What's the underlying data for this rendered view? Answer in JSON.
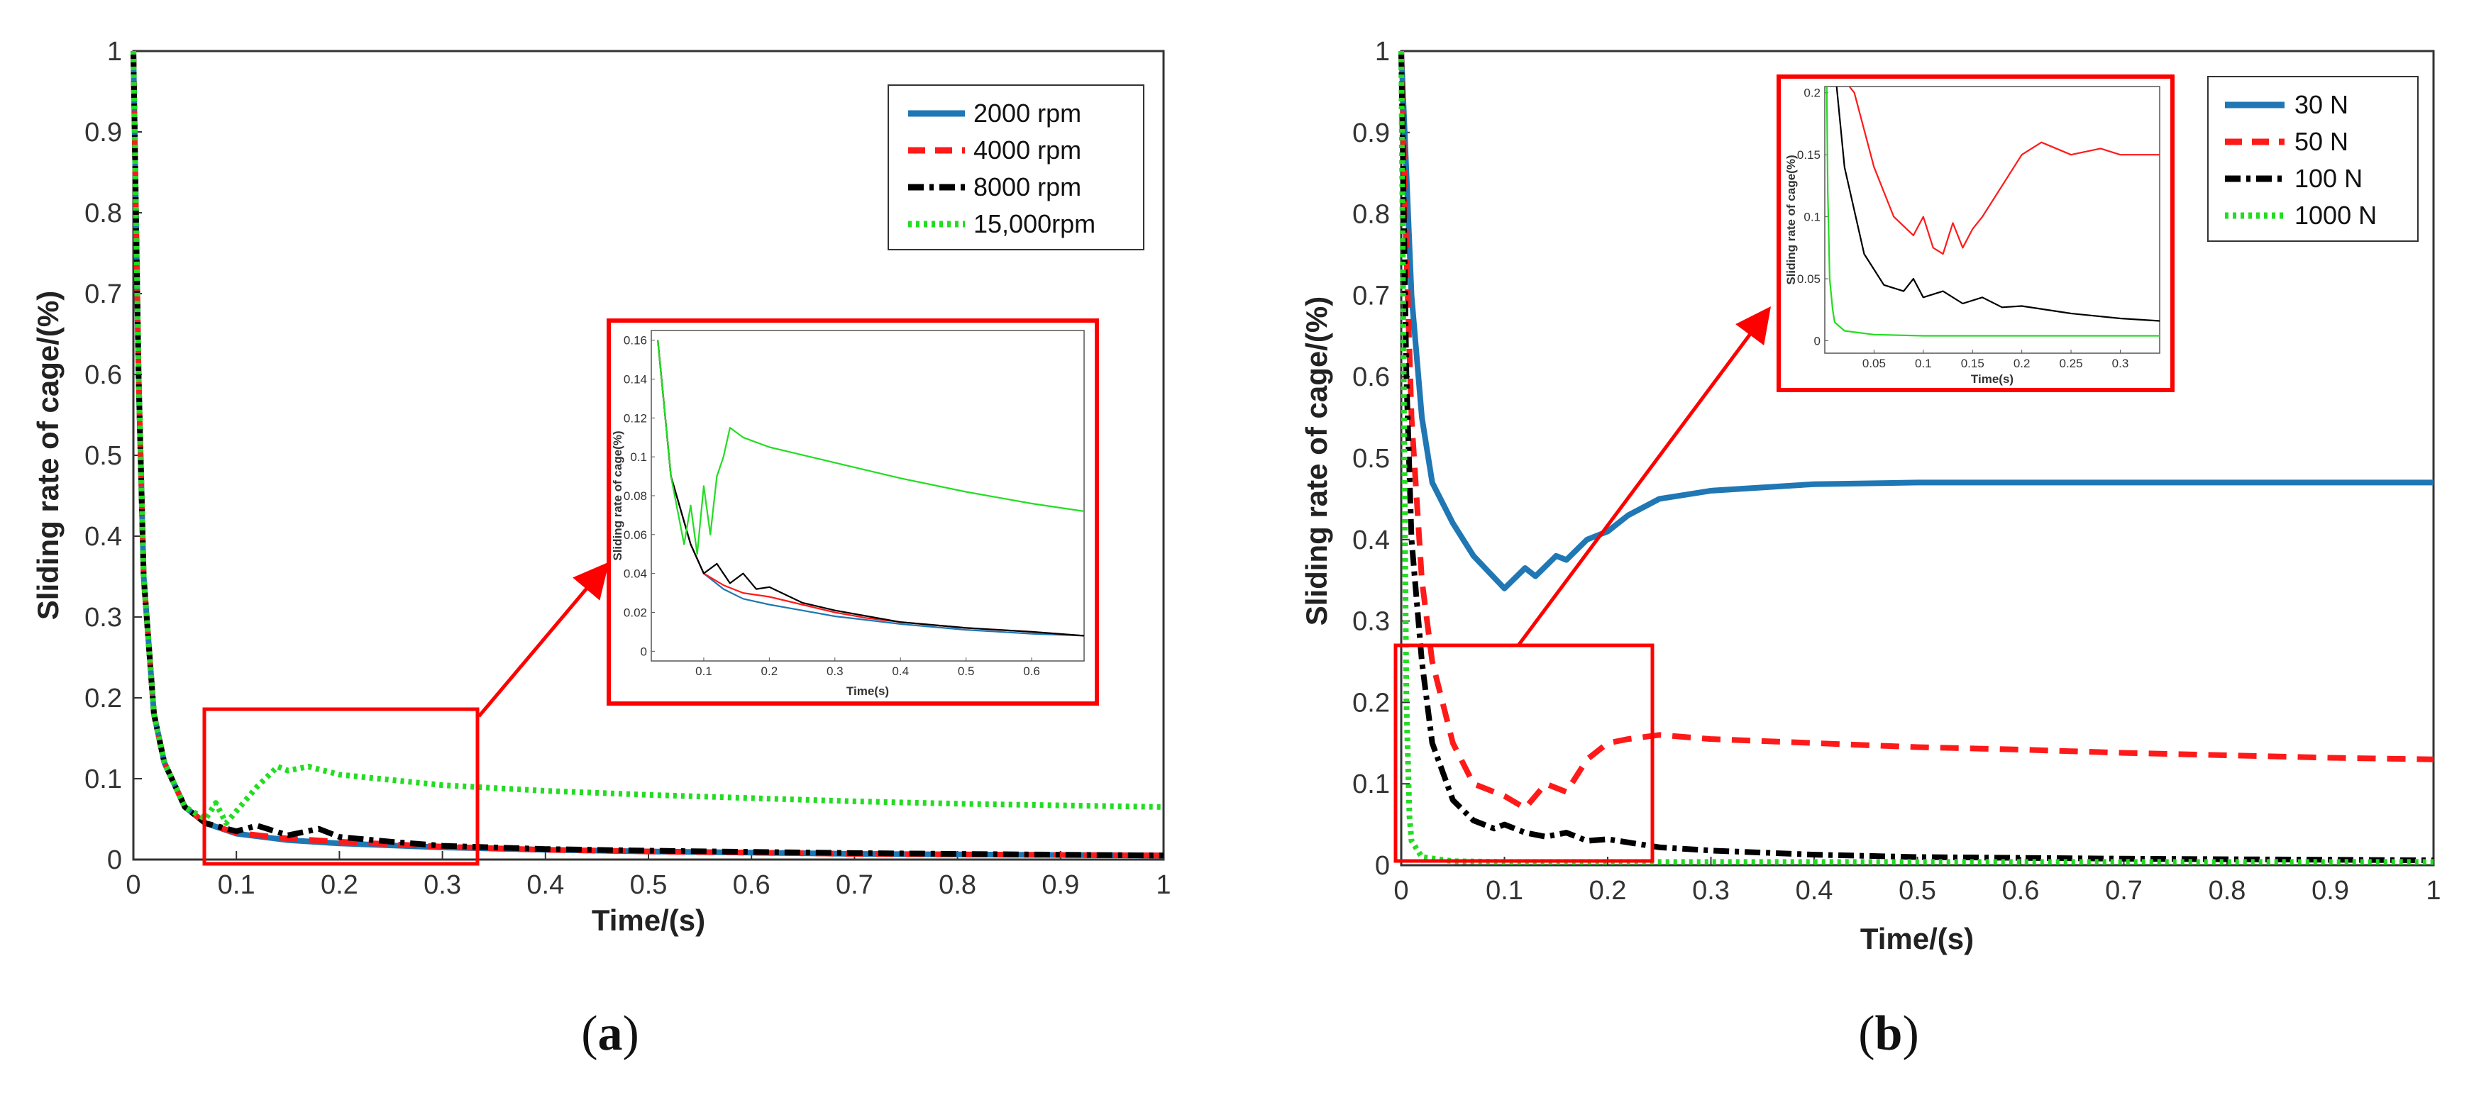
{
  "chart_data": [
    {
      "id": "a",
      "type": "line",
      "caption": {
        "open": "(",
        "letter": "a",
        "close": ")"
      },
      "xlabel": "Time/(s)",
      "ylabel": "Sliding rate of cage/(%)",
      "xlim": [
        0,
        1
      ],
      "ylim": [
        0,
        1
      ],
      "xticks": [
        "0",
        "0.1",
        "0.2",
        "0.3",
        "0.4",
        "0.5",
        "0.6",
        "0.7",
        "0.8",
        "0.9",
        "1"
      ],
      "yticks": [
        "0",
        "0.1",
        "0.2",
        "0.3",
        "0.4",
        "0.5",
        "0.6",
        "0.7",
        "0.8",
        "0.9",
        "1"
      ],
      "legend_position": "top-right",
      "series": [
        {
          "name": "2000 rpm",
          "color": "#1f77b4",
          "style": "solid",
          "x": [
            0,
            0.005,
            0.01,
            0.02,
            0.03,
            0.05,
            0.07,
            0.1,
            0.15,
            0.2,
            0.3,
            0.4,
            0.5,
            0.7,
            1.0
          ],
          "values": [
            1.0,
            0.6,
            0.35,
            0.18,
            0.12,
            0.065,
            0.045,
            0.032,
            0.024,
            0.02,
            0.015,
            0.012,
            0.01,
            0.007,
            0.005
          ]
        },
        {
          "name": "4000 rpm",
          "color": "#ff1a1a",
          "style": "dashed",
          "x": [
            0,
            0.005,
            0.01,
            0.02,
            0.03,
            0.05,
            0.07,
            0.1,
            0.15,
            0.2,
            0.3,
            0.4,
            0.5,
            0.7,
            1.0
          ],
          "values": [
            1.0,
            0.6,
            0.35,
            0.18,
            0.12,
            0.065,
            0.045,
            0.033,
            0.026,
            0.022,
            0.016,
            0.012,
            0.01,
            0.007,
            0.005
          ]
        },
        {
          "name": "8000 rpm",
          "color": "#000000",
          "style": "dashdot",
          "x": [
            0,
            0.005,
            0.01,
            0.02,
            0.03,
            0.05,
            0.07,
            0.1,
            0.12,
            0.15,
            0.18,
            0.2,
            0.25,
            0.3,
            0.4,
            0.5,
            0.7,
            1.0
          ],
          "values": [
            1.0,
            0.6,
            0.35,
            0.18,
            0.12,
            0.065,
            0.045,
            0.035,
            0.042,
            0.03,
            0.038,
            0.028,
            0.022,
            0.017,
            0.013,
            0.011,
            0.008,
            0.005
          ]
        },
        {
          "name": "15,000rpm",
          "color": "#22dd22",
          "style": "dotted",
          "x": [
            0,
            0.005,
            0.01,
            0.02,
            0.03,
            0.05,
            0.07,
            0.08,
            0.09,
            0.1,
            0.12,
            0.14,
            0.15,
            0.17,
            0.2,
            0.3,
            0.4,
            0.5,
            0.6,
            0.7,
            0.8,
            0.9,
            1.0
          ],
          "values": [
            1.0,
            0.6,
            0.35,
            0.18,
            0.12,
            0.065,
            0.05,
            0.07,
            0.045,
            0.06,
            0.09,
            0.115,
            0.11,
            0.115,
            0.105,
            0.092,
            0.085,
            0.08,
            0.076,
            0.072,
            0.069,
            0.067,
            0.065
          ]
        }
      ],
      "zoom_box": {
        "x": [
          0.068,
          0.333
        ],
        "y": [
          0,
          0.19
        ]
      },
      "inset": {
        "xlabel": "Time(s)",
        "ylabel": "Sliding rate of cage(%)",
        "xlim": [
          0.02,
          0.68
        ],
        "ylim": [
          -0.005,
          0.165
        ],
        "xticks": [
          "0.1",
          "0.2",
          "0.3",
          "0.4",
          "0.5",
          "0.6"
        ],
        "yticks": [
          "0",
          "0.02",
          "0.04",
          "0.06",
          "0.08",
          "0.1",
          "0.12",
          "0.14",
          "0.16"
        ],
        "series": [
          {
            "name": "2000 rpm",
            "color": "#1f77b4",
            "x": [
              0.03,
              0.05,
              0.08,
              0.1,
              0.13,
              0.16,
              0.2,
              0.25,
              0.3,
              0.35,
              0.4,
              0.5,
              0.6,
              0.68
            ],
            "values": [
              0.16,
              0.09,
              0.055,
              0.04,
              0.032,
              0.027,
              0.024,
              0.021,
              0.018,
              0.016,
              0.014,
              0.011,
              0.009,
              0.008
            ]
          },
          {
            "name": "4000 rpm",
            "color": "#ff1a1a",
            "x": [
              0.03,
              0.05,
              0.08,
              0.1,
              0.13,
              0.16,
              0.2,
              0.25,
              0.3,
              0.35,
              0.4,
              0.5,
              0.6,
              0.68
            ],
            "values": [
              0.16,
              0.09,
              0.055,
              0.04,
              0.034,
              0.03,
              0.028,
              0.024,
              0.02,
              0.017,
              0.015,
              0.012,
              0.01,
              0.008
            ]
          },
          {
            "name": "8000 rpm",
            "color": "#000000",
            "x": [
              0.03,
              0.05,
              0.08,
              0.1,
              0.12,
              0.14,
              0.16,
              0.18,
              0.2,
              0.25,
              0.3,
              0.35,
              0.4,
              0.5,
              0.6,
              0.68
            ],
            "values": [
              0.16,
              0.09,
              0.055,
              0.04,
              0.045,
              0.035,
              0.04,
              0.032,
              0.033,
              0.025,
              0.021,
              0.018,
              0.015,
              0.012,
              0.01,
              0.008
            ]
          },
          {
            "name": "15,000rpm",
            "color": "#22dd22",
            "x": [
              0.03,
              0.05,
              0.07,
              0.08,
              0.09,
              0.1,
              0.11,
              0.12,
              0.13,
              0.14,
              0.16,
              0.2,
              0.3,
              0.4,
              0.5,
              0.6,
              0.68
            ],
            "values": [
              0.16,
              0.09,
              0.055,
              0.075,
              0.05,
              0.085,
              0.06,
              0.09,
              0.1,
              0.115,
              0.11,
              0.105,
              0.097,
              0.089,
              0.082,
              0.076,
              0.072
            ]
          }
        ]
      }
    },
    {
      "id": "b",
      "type": "line",
      "caption": {
        "open": "(",
        "letter": "b",
        "close": ")"
      },
      "xlabel": "Time/(s)",
      "ylabel": "Sliding rate of cage/(%)",
      "xlim": [
        0,
        1
      ],
      "ylim": [
        0,
        1
      ],
      "xticks": [
        "0",
        "0.1",
        "0.2",
        "0.3",
        "0.4",
        "0.5",
        "0.6",
        "0.7",
        "0.8",
        "0.9",
        "1"
      ],
      "yticks": [
        "0",
        "0.1",
        "0.2",
        "0.3",
        "0.4",
        "0.5",
        "0.6",
        "0.7",
        "0.8",
        "0.9",
        "1"
      ],
      "legend_position": "top-right",
      "series": [
        {
          "name": "30 N",
          "color": "#1f77b4",
          "style": "solid",
          "x": [
            0,
            0.005,
            0.01,
            0.02,
            0.03,
            0.05,
            0.07,
            0.1,
            0.12,
            0.13,
            0.15,
            0.16,
            0.18,
            0.2,
            0.22,
            0.25,
            0.3,
            0.4,
            0.5,
            0.7,
            1.0
          ],
          "values": [
            1.0,
            0.85,
            0.7,
            0.55,
            0.47,
            0.42,
            0.38,
            0.34,
            0.365,
            0.355,
            0.38,
            0.375,
            0.4,
            0.41,
            0.43,
            0.45,
            0.46,
            0.468,
            0.47,
            0.47,
            0.47
          ]
        },
        {
          "name": "50 N",
          "color": "#ff1a1a",
          "style": "dashed",
          "x": [
            0,
            0.005,
            0.01,
            0.02,
            0.03,
            0.05,
            0.07,
            0.1,
            0.12,
            0.14,
            0.16,
            0.18,
            0.2,
            0.22,
            0.25,
            0.3,
            0.4,
            0.5,
            0.6,
            0.7,
            0.8,
            0.9,
            1.0
          ],
          "values": [
            1.0,
            0.75,
            0.55,
            0.35,
            0.25,
            0.15,
            0.1,
            0.085,
            0.07,
            0.1,
            0.09,
            0.13,
            0.15,
            0.155,
            0.16,
            0.155,
            0.15,
            0.145,
            0.142,
            0.138,
            0.135,
            0.132,
            0.13
          ]
        },
        {
          "name": "100 N",
          "color": "#000000",
          "style": "dashdot",
          "x": [
            0,
            0.005,
            0.01,
            0.02,
            0.03,
            0.05,
            0.07,
            0.09,
            0.1,
            0.12,
            0.14,
            0.16,
            0.18,
            0.2,
            0.25,
            0.3,
            0.4,
            0.5,
            0.7,
            1.0
          ],
          "values": [
            1.0,
            0.6,
            0.4,
            0.25,
            0.15,
            0.08,
            0.055,
            0.045,
            0.05,
            0.04,
            0.035,
            0.04,
            0.03,
            0.032,
            0.022,
            0.018,
            0.013,
            0.01,
            0.008,
            0.006
          ]
        },
        {
          "name": "1000 N",
          "color": "#22dd22",
          "style": "dotted",
          "x": [
            0,
            0.003,
            0.005,
            0.008,
            0.01,
            0.02,
            0.05,
            0.1,
            0.3,
            0.5,
            1.0
          ],
          "values": [
            1.0,
            0.5,
            0.2,
            0.06,
            0.03,
            0.01,
            0.005,
            0.004,
            0.004,
            0.004,
            0.004
          ]
        }
      ],
      "zoom_box": {
        "x": [
          0,
          0.255
        ],
        "y": [
          0,
          0.265
        ]
      },
      "inset": {
        "xlabel": "Time(s)",
        "ylabel": "Sliding rate of cage(%)",
        "xlim": [
          0,
          0.34
        ],
        "ylim": [
          -0.01,
          0.205
        ],
        "xticks": [
          "0.05",
          "0.1",
          "0.15",
          "0.2",
          "0.25",
          "0.3"
        ],
        "yticks": [
          "0",
          "0.05",
          "0.1",
          "0.15",
          "0.2"
        ],
        "series": [
          {
            "name": "50 N",
            "color": "#ff1a1a",
            "x": [
              0.025,
              0.03,
              0.05,
              0.07,
              0.09,
              0.1,
              0.11,
              0.12,
              0.13,
              0.14,
              0.15,
              0.16,
              0.18,
              0.2,
              0.22,
              0.25,
              0.28,
              0.3,
              0.34
            ],
            "values": [
              0.205,
              0.2,
              0.14,
              0.1,
              0.085,
              0.1,
              0.075,
              0.07,
              0.095,
              0.075,
              0.09,
              0.1,
              0.125,
              0.15,
              0.16,
              0.15,
              0.155,
              0.15,
              0.15
            ]
          },
          {
            "name": "100 N",
            "color": "#000000",
            "x": [
              0.012,
              0.02,
              0.04,
              0.06,
              0.08,
              0.09,
              0.1,
              0.12,
              0.14,
              0.16,
              0.18,
              0.2,
              0.25,
              0.3,
              0.34
            ],
            "values": [
              0.205,
              0.14,
              0.07,
              0.045,
              0.04,
              0.05,
              0.035,
              0.04,
              0.03,
              0.035,
              0.027,
              0.028,
              0.022,
              0.018,
              0.016
            ]
          },
          {
            "name": "1000 N",
            "color": "#22dd22",
            "x": [
              0.002,
              0.003,
              0.005,
              0.008,
              0.01,
              0.02,
              0.05,
              0.1,
              0.2,
              0.34
            ],
            "values": [
              0.205,
              0.12,
              0.05,
              0.025,
              0.015,
              0.008,
              0.005,
              0.004,
              0.004,
              0.004
            ]
          }
        ]
      }
    }
  ]
}
